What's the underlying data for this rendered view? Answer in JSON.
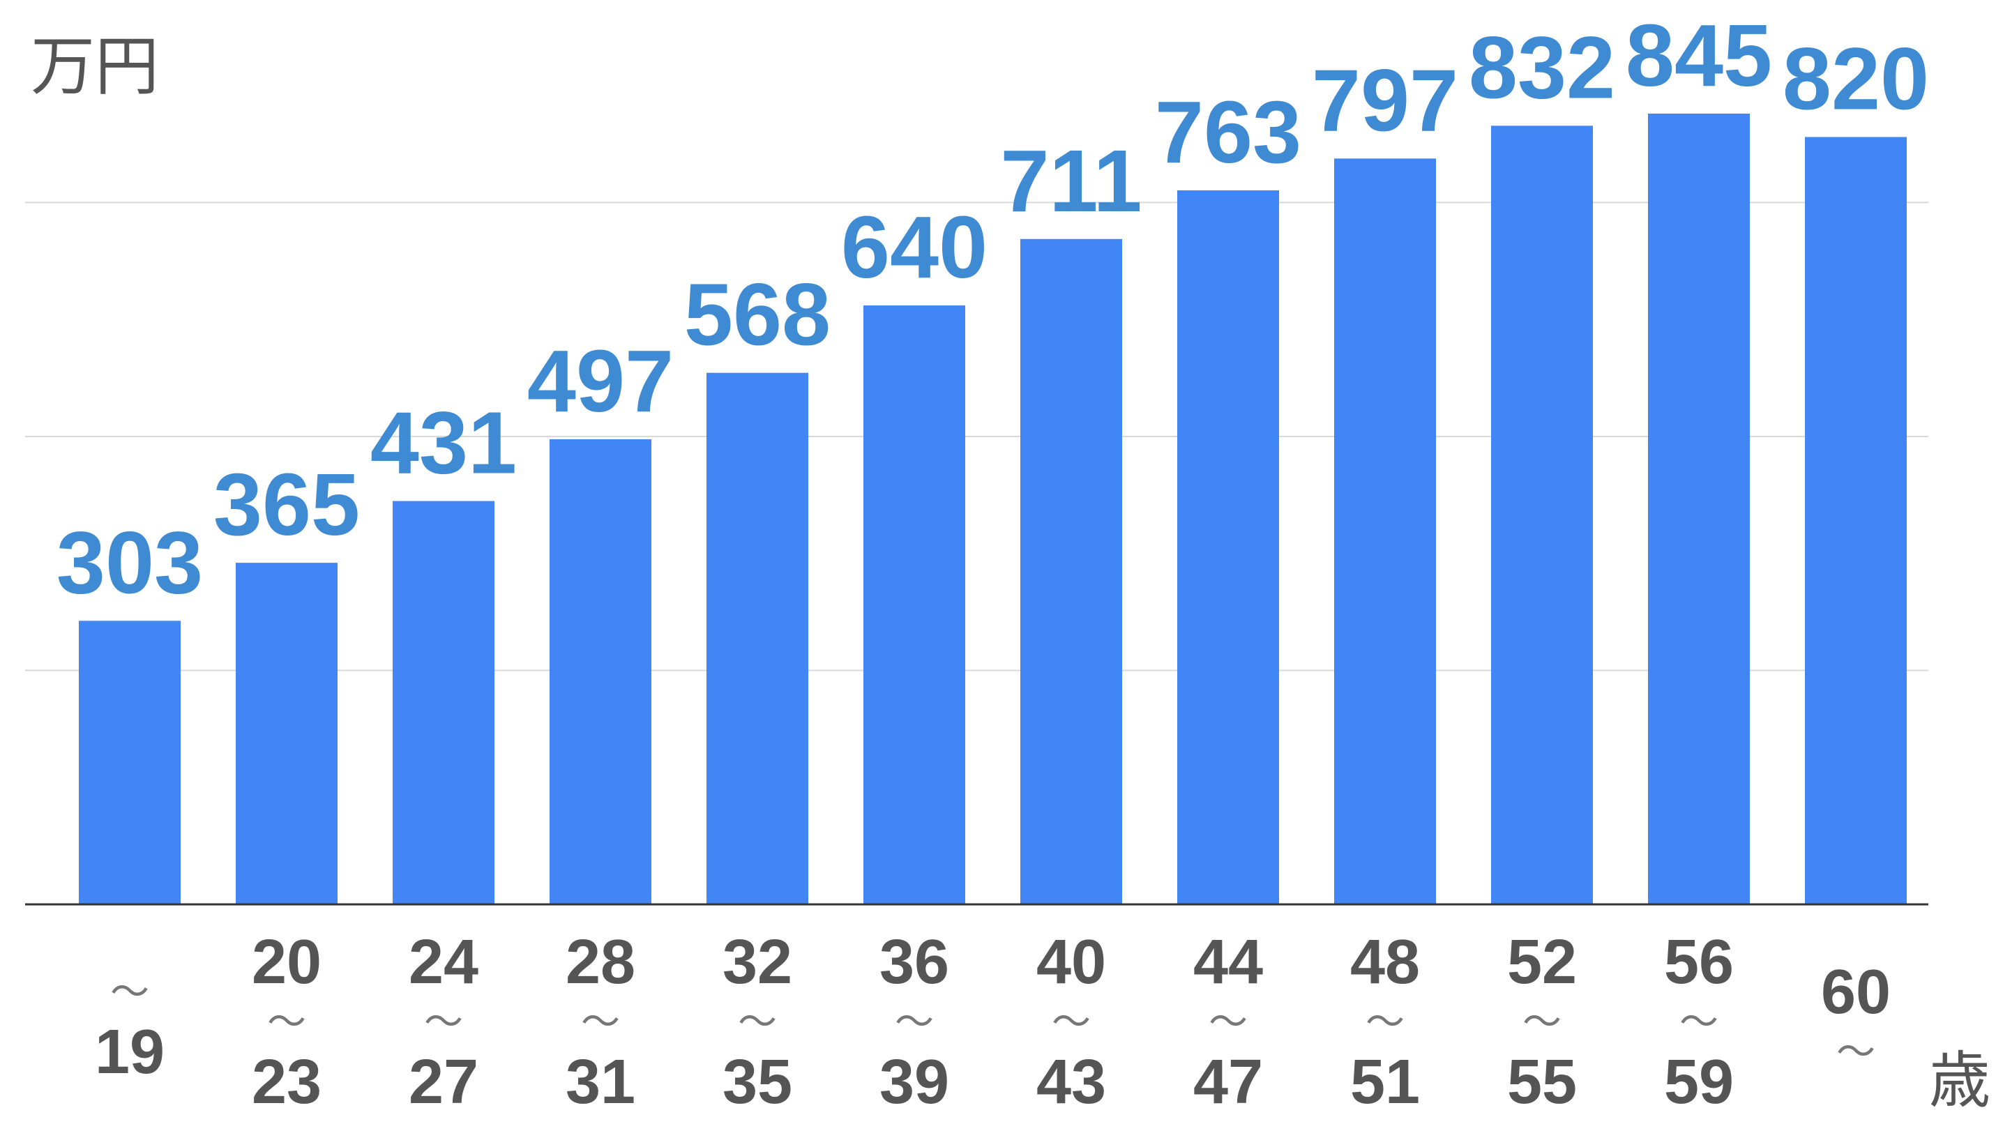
{
  "chart_data": {
    "type": "bar",
    "categories": [
      "〜19",
      "20〜23",
      "24〜27",
      "28〜31",
      "32〜35",
      "36〜39",
      "40〜43",
      "44〜47",
      "48〜51",
      "52〜55",
      "56〜59",
      "60〜"
    ],
    "values": [
      303,
      365,
      431,
      497,
      568,
      640,
      711,
      763,
      797,
      832,
      845,
      820
    ],
    "ylabel": "万円",
    "xlabel": "歳",
    "ylim": [
      0,
      950
    ],
    "gridlines": [
      250,
      500,
      750
    ],
    "grid": true,
    "legend": "none",
    "data_labels": true,
    "colors": {
      "bars": "#4285f4",
      "data_labels": "#3f8bd3",
      "axis_text": "#555555",
      "tilde": "#777777",
      "gridlines": "#d9d9d9",
      "axis_line": "#333333"
    }
  }
}
